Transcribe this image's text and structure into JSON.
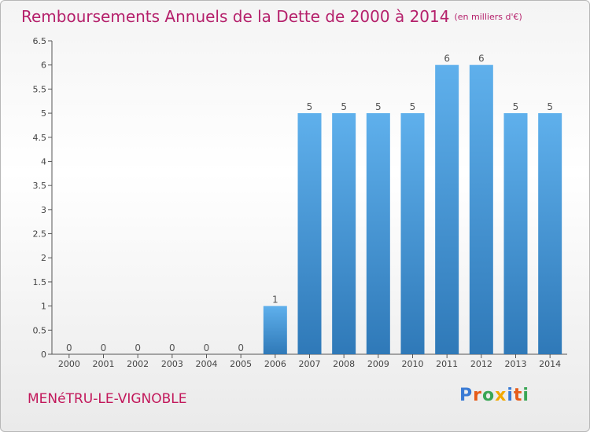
{
  "header": {
    "title": "Remboursements Annuels de la Dette de 2000 à 2014",
    "subtitle": "(en milliers d'€)"
  },
  "footer": {
    "commune": "MENéTRU-LE-VIGNOBLE",
    "logo_letters": [
      {
        "ch": "P",
        "color": "#3a7bd5"
      },
      {
        "ch": "r",
        "color": "#e65c1a"
      },
      {
        "ch": "o",
        "color": "#3aa655"
      },
      {
        "ch": "x",
        "color": "#f2a900"
      },
      {
        "ch": "i",
        "color": "#3a7bd5"
      },
      {
        "ch": "t",
        "color": "#e65c1a"
      },
      {
        "ch": "i",
        "color": "#3aa655"
      }
    ]
  },
  "colors": {
    "title": "#b5206b",
    "bar_light": "#5fb0ec",
    "bar_dark": "#2f79b8"
  },
  "chart_data": {
    "type": "bar",
    "title": "Remboursements Annuels de la Dette de 2000 à 2014",
    "categories": [
      "2000",
      "2001",
      "2002",
      "2003",
      "2004",
      "2005",
      "2006",
      "2007",
      "2008",
      "2009",
      "2010",
      "2011",
      "2012",
      "2013",
      "2014"
    ],
    "values": [
      0,
      0,
      0,
      0,
      0,
      0,
      1,
      5,
      5,
      5,
      5,
      6,
      6,
      5,
      5
    ],
    "ylim": [
      0,
      6.5
    ],
    "yticks": [
      "0",
      "0.5",
      "1",
      "1.5",
      "2",
      "2.5",
      "3",
      "3.5",
      "4",
      "4.5",
      "5",
      "5.5",
      "6",
      "6.5"
    ],
    "grid": false
  }
}
